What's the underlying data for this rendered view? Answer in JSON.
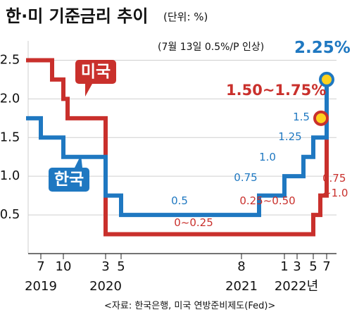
{
  "chart_data": {
    "type": "line",
    "title": "한·미 기준금리 추이",
    "unit_label": "(단위: %)",
    "source": "<자료: 한국은행, 미국 연방준비제도(Fed)>",
    "note": "(7월 13일 0.5%/P 인상)",
    "ylim": [
      0,
      2.75
    ],
    "y_ticks": [
      "2.5",
      "2.0",
      "1.5",
      "1.0",
      "0.5"
    ],
    "x_ticks": [
      "7",
      "10",
      "3",
      "5",
      "8",
      "1",
      "3",
      "5",
      "7"
    ],
    "year_labels": [
      "2019",
      "2020",
      "2021",
      "2022년"
    ],
    "series": [
      {
        "name": "미국",
        "color": "#c9302c",
        "points": [
          [
            "2019-06",
            2.5
          ],
          [
            "2019-08",
            2.25
          ],
          [
            "2019-10",
            2.0
          ],
          [
            "2019-11",
            1.75
          ],
          [
            "2020-03",
            1.75
          ],
          [
            "2020-03",
            1.0
          ],
          [
            "2020-03",
            0.25
          ],
          [
            "2022-03",
            0.25
          ],
          [
            "2022-05",
            0.5
          ],
          [
            "2022-06",
            0.75
          ],
          [
            "2022-07",
            1.5
          ],
          [
            "2022-07",
            1.75
          ]
        ],
        "labels": [
          "0~0.25",
          "0.25~0.50",
          "0.75",
          "~1.0",
          "1.50~1.75%"
        ]
      },
      {
        "name": "한국",
        "color": "#1f78c1",
        "points": [
          [
            "2019-06",
            1.75
          ],
          [
            "2019-07",
            1.5
          ],
          [
            "2019-10",
            1.25
          ],
          [
            "2020-03",
            1.25
          ],
          [
            "2020-03",
            0.75
          ],
          [
            "2020-05",
            0.5
          ],
          [
            "2021-08",
            0.5
          ],
          [
            "2021-11",
            0.75
          ],
          [
            "2022-01",
            1.0
          ],
          [
            "2022-04",
            1.25
          ],
          [
            "2022-05",
            1.5
          ],
          [
            "2022-07",
            1.75
          ],
          [
            "2022-07",
            2.25
          ]
        ],
        "labels": [
          "0.5",
          "0.75",
          "1.0",
          "1.25",
          "1.5",
          "2.25%"
        ]
      }
    ]
  }
}
